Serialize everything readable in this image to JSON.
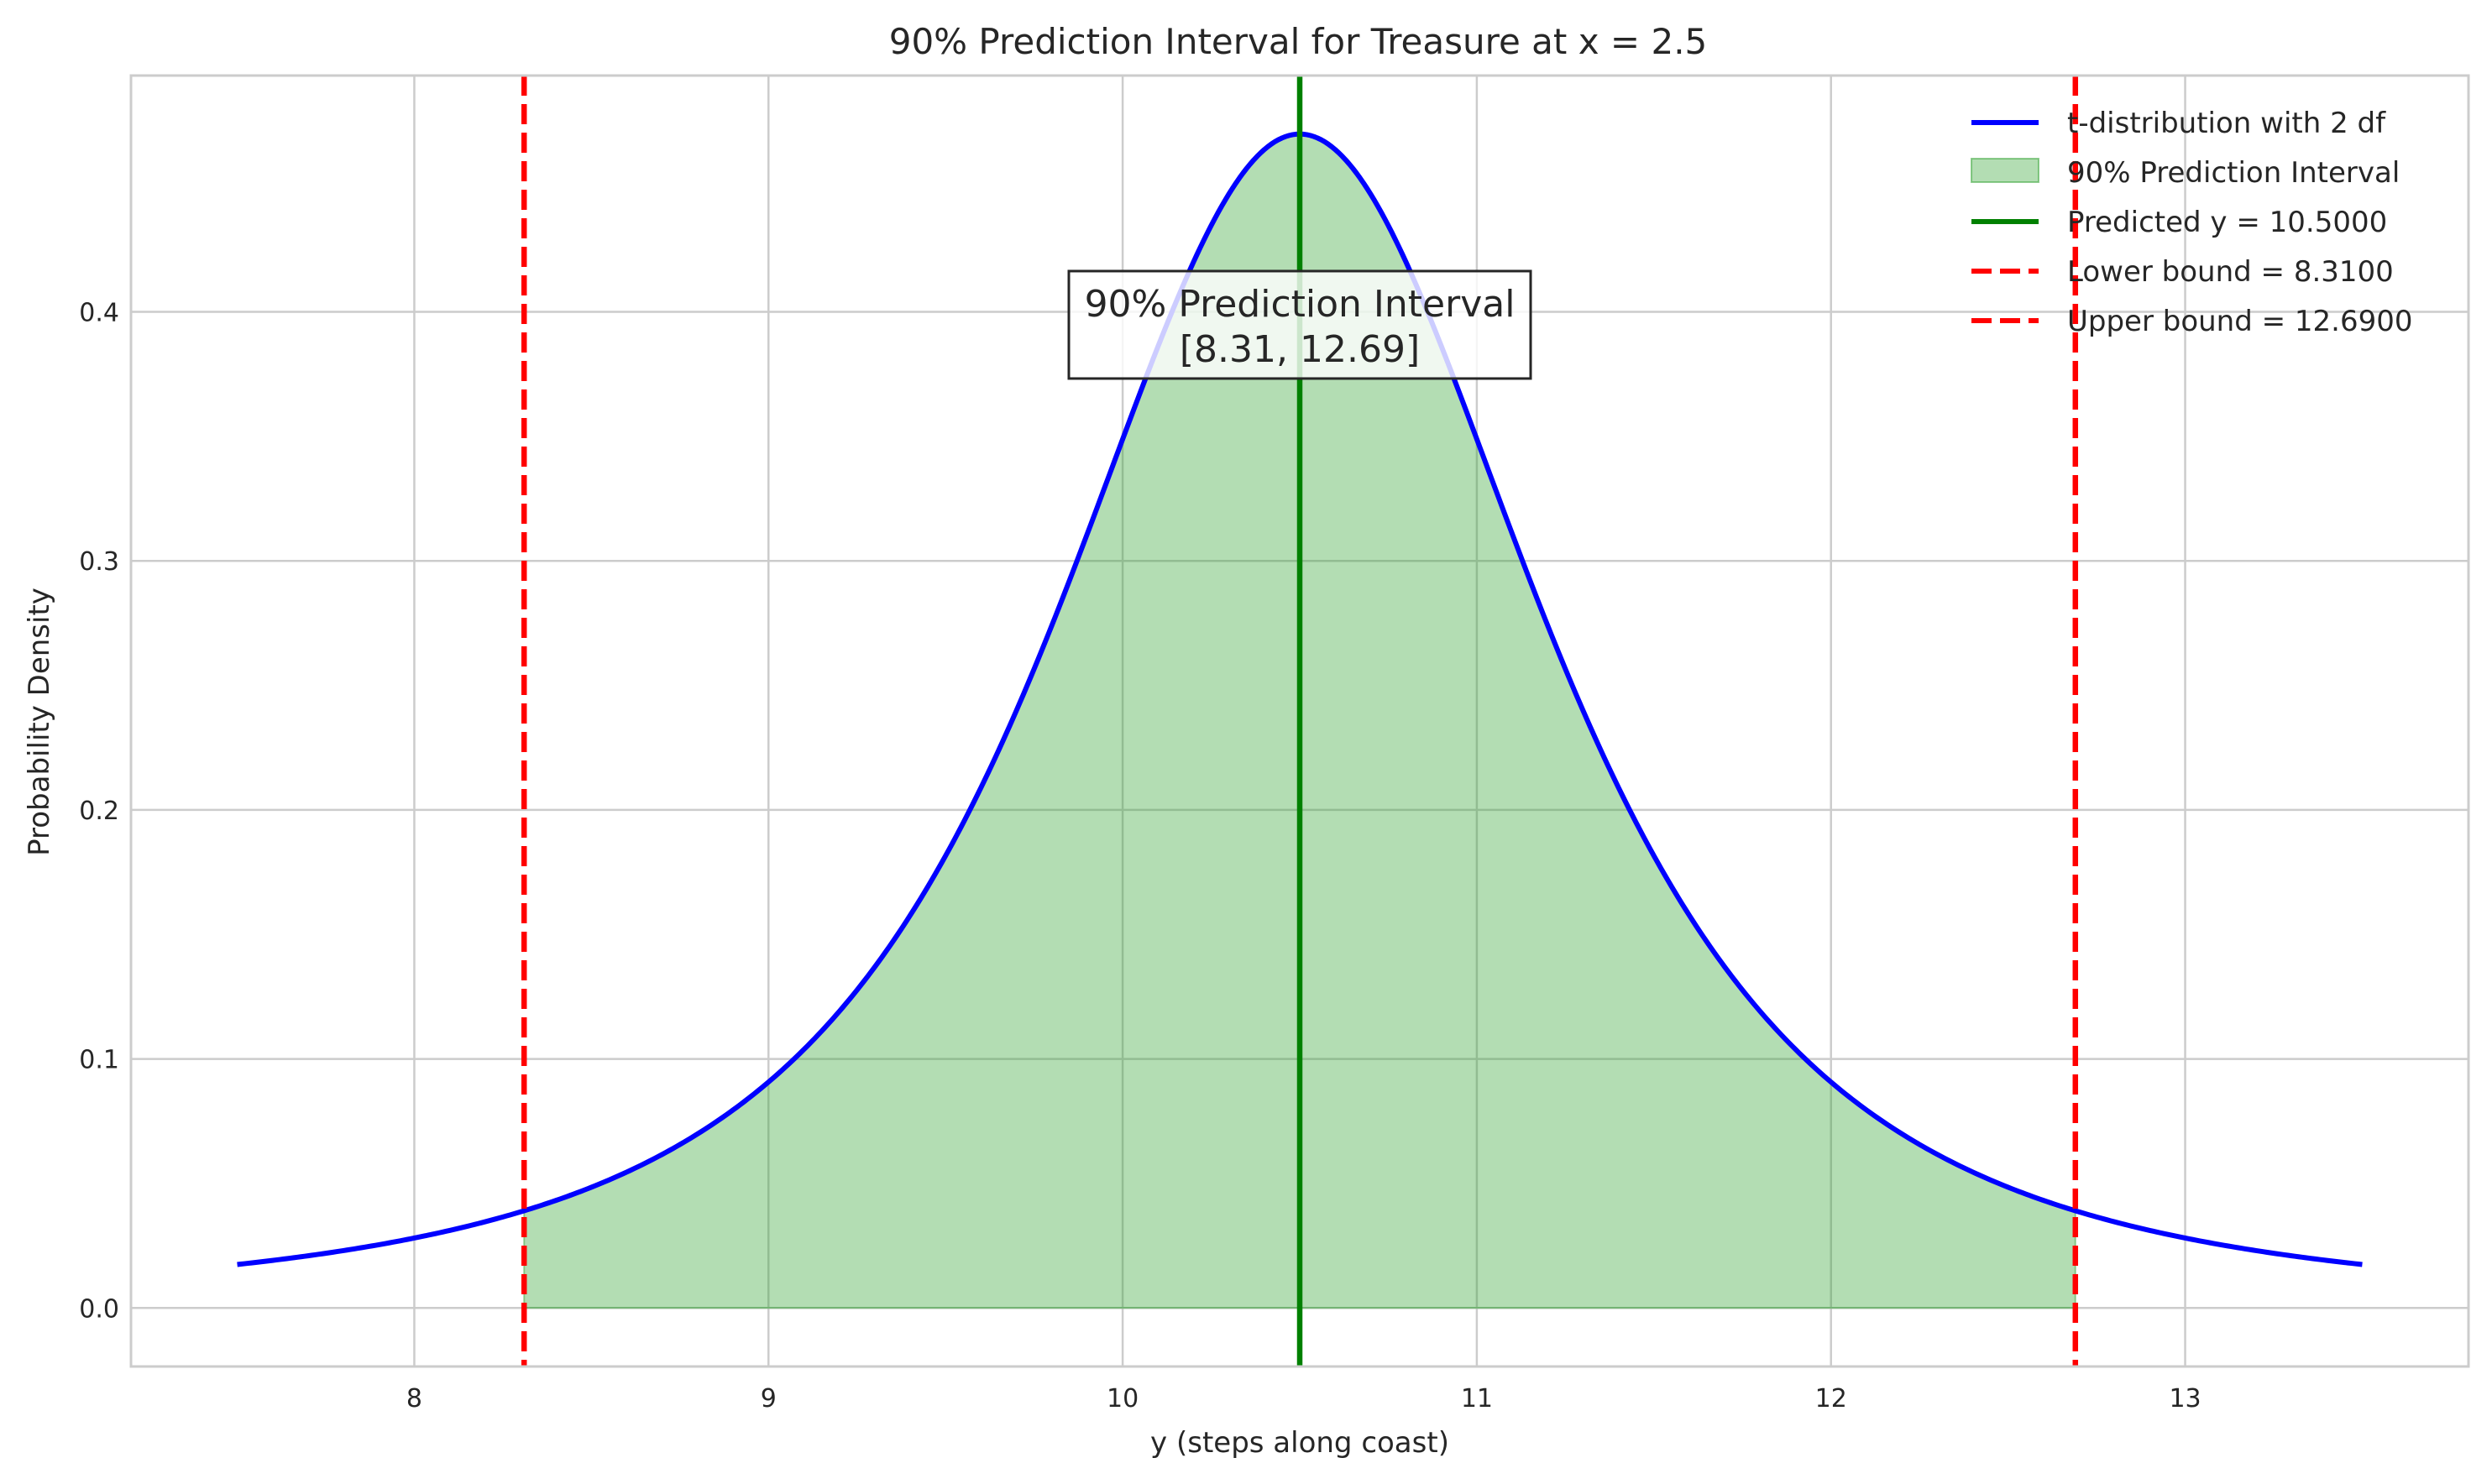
{
  "chart_data": {
    "type": "line",
    "title": "90% Prediction Interval for Treasure at x = 2.5",
    "xlabel": "y (steps along coast)",
    "ylabel": "Probability Density",
    "xlim": [
      7.2,
      13.8
    ],
    "ylim": [
      -0.0235,
      0.4949
    ],
    "xticks": [
      8,
      9,
      10,
      11,
      12,
      13
    ],
    "yticks": [
      0.0,
      0.1,
      0.2,
      0.3,
      0.4
    ],
    "xtick_labels": [
      "8",
      "9",
      "10",
      "11",
      "12",
      "13"
    ],
    "ytick_labels": [
      "0.0",
      "0.1",
      "0.2",
      "0.3",
      "0.4"
    ],
    "grid": true,
    "legend_position": "top-right",
    "curve": {
      "name": "t-distribution with 2 df",
      "df": 2,
      "center": 10.5,
      "scale": 0.75,
      "x_range": [
        7.5,
        13.5
      ],
      "peak": 0.4714,
      "color": "#0000ff"
    },
    "interval_fill": {
      "name": "90% Prediction Interval",
      "from": 8.31,
      "to": 12.69,
      "color": "#2ca02c",
      "opacity": 0.36
    },
    "vlines": [
      {
        "name": "Predicted y = 10.5000",
        "x": 10.5,
        "color": "#008000",
        "style": "solid"
      },
      {
        "name": "Lower bound = 8.3100",
        "x": 8.31,
        "color": "#ff0000",
        "style": "dashed"
      },
      {
        "name": "Upper bound = 12.6900",
        "x": 12.69,
        "color": "#ff0000",
        "style": "dashed"
      }
    ],
    "annotation": {
      "lines": [
        "90% Prediction Interval",
        "[8.31, 12.69]"
      ],
      "x": 10.5,
      "y": 0.3975
    },
    "legend": [
      {
        "label": "t-distribution with 2 df",
        "kind": "line",
        "color": "#0000ff"
      },
      {
        "label": "90% Prediction Interval",
        "kind": "patch",
        "color": "#2ca02c"
      },
      {
        "label": "Predicted y = 10.5000",
        "kind": "line",
        "color": "#008000"
      },
      {
        "label": "Lower bound = 8.3100",
        "kind": "dash",
        "color": "#ff0000"
      },
      {
        "label": "Upper bound = 12.6900",
        "kind": "dash",
        "color": "#ff0000"
      }
    ]
  }
}
